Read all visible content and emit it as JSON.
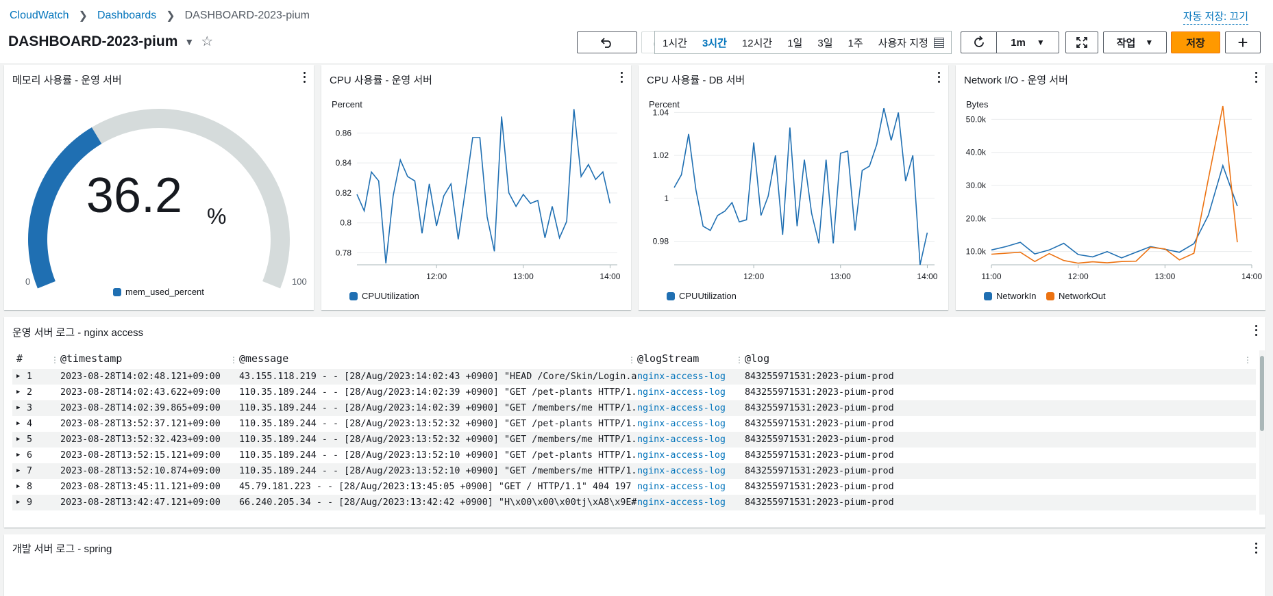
{
  "breadcrumb": {
    "root": "CloudWatch",
    "dashboards": "Dashboards",
    "current": "DASHBOARD-2023-pium"
  },
  "autosave": "자동 저장: 끄기",
  "dashboard_title": "DASHBOARD-2023-pium",
  "time_ranges": [
    "1시간",
    "3시간",
    "12시간",
    "1일",
    "3일",
    "1주",
    "사용자 지정"
  ],
  "active_time_range": "3시간",
  "refresh_interval": "1m",
  "actions_label": "작업",
  "save_label": "저장",
  "widgets": {
    "memory": {
      "title": "메모리 사용률 - 운영 서버",
      "value": "36.2",
      "unit": "%",
      "min": "0",
      "max": "100",
      "percent": 36.2,
      "legend": "mem_used_percent",
      "fill_color": "#1f6fb2",
      "track_color": "#d5dbdb"
    },
    "cpu_app": {
      "title": "CPU 사용률 - 운영 서버",
      "unit_label": "Percent",
      "legend": "CPUUtilization"
    },
    "cpu_db": {
      "title": "CPU 사용률 - DB 서버",
      "unit_label": "Percent",
      "legend": "CPUUtilization"
    },
    "network": {
      "title": "Network I/O - 운영 서버",
      "unit_label": "Bytes",
      "legend_in": "NetworkIn",
      "legend_out": "NetworkOut"
    }
  },
  "chart_data": [
    {
      "type": "line",
      "title": "CPU 사용률 - 운영 서버",
      "ylabel": "Percent",
      "x_ticks": [
        "12:00",
        "13:00",
        "14:00"
      ],
      "y_ticks": [
        "0.78",
        "0.8",
        "0.82",
        "0.84",
        "0.86"
      ],
      "xlim": [
        "11:05",
        "14:05"
      ],
      "ylim": [
        0.772,
        0.878
      ],
      "series": [
        {
          "name": "CPUUtilization",
          "color": "#1f6fb2",
          "x": [
            "11:05",
            "11:10",
            "11:15",
            "11:20",
            "11:25",
            "11:30",
            "11:35",
            "11:40",
            "11:45",
            "11:50",
            "11:55",
            "12:00",
            "12:05",
            "12:10",
            "12:15",
            "12:20",
            "12:25",
            "12:30",
            "12:35",
            "12:40",
            "12:45",
            "12:50",
            "12:55",
            "13:00",
            "13:05",
            "13:10",
            "13:15",
            "13:20",
            "13:25",
            "13:30",
            "13:35",
            "13:40",
            "13:45",
            "13:50",
            "13:55",
            "14:00"
          ],
          "values": [
            0.819,
            0.808,
            0.834,
            0.828,
            0.773,
            0.818,
            0.842,
            0.831,
            0.828,
            0.793,
            0.826,
            0.798,
            0.818,
            0.826,
            0.789,
            0.822,
            0.857,
            0.857,
            0.804,
            0.781,
            0.871,
            0.82,
            0.811,
            0.819,
            0.813,
            0.815,
            0.79,
            0.811,
            0.79,
            0.801,
            0.876,
            0.831,
            0.839,
            0.829,
            0.834,
            0.813
          ]
        }
      ]
    },
    {
      "type": "line",
      "title": "CPU 사용률 - DB 서버",
      "ylabel": "Percent",
      "x_ticks": [
        "12:00",
        "13:00",
        "14:00"
      ],
      "y_ticks": [
        "0.98",
        "1",
        "1.02",
        "1.04"
      ],
      "xlim": [
        "11:05",
        "14:05"
      ],
      "ylim": [
        0.969,
        1.043
      ],
      "series": [
        {
          "name": "CPUUtilization",
          "color": "#1f6fb2",
          "x": [
            "11:05",
            "11:10",
            "11:15",
            "11:20",
            "11:25",
            "11:30",
            "11:35",
            "11:40",
            "11:45",
            "11:50",
            "11:55",
            "12:00",
            "12:05",
            "12:10",
            "12:15",
            "12:20",
            "12:25",
            "12:30",
            "12:35",
            "12:40",
            "12:45",
            "12:50",
            "12:55",
            "13:00",
            "13:05",
            "13:10",
            "13:15",
            "13:20",
            "13:25",
            "13:30",
            "13:35",
            "13:40",
            "13:45",
            "13:50",
            "13:55",
            "14:00"
          ],
          "values": [
            1.005,
            1.011,
            1.03,
            1.004,
            0.987,
            0.985,
            0.992,
            0.994,
            0.998,
            0.989,
            0.99,
            1.026,
            0.992,
            1.001,
            1.02,
            0.983,
            1.033,
            0.987,
            1.018,
            0.993,
            0.979,
            1.018,
            0.979,
            1.021,
            1.022,
            0.985,
            1.013,
            1.015,
            1.025,
            1.042,
            1.027,
            1.04,
            1.008,
            1.02,
            0.969,
            0.984
          ]
        }
      ]
    },
    {
      "type": "line",
      "title": "Network I/O - 운영 서버",
      "ylabel": "Bytes",
      "x_ticks": [
        "11:00",
        "12:00",
        "13:00",
        "14:00"
      ],
      "y_ticks": [
        "10.0k",
        "20.0k",
        "30.0k",
        "40.0k",
        "50.0k"
      ],
      "xlim": [
        "11:00",
        "14:00"
      ],
      "ylim": [
        6000,
        54000
      ],
      "series": [
        {
          "name": "NetworkIn",
          "color": "#1f6fb2",
          "x": [
            "11:00",
            "11:10",
            "11:20",
            "11:30",
            "11:40",
            "11:50",
            "12:00",
            "12:10",
            "12:20",
            "12:30",
            "12:40",
            "12:50",
            "13:00",
            "13:10",
            "13:20",
            "13:30",
            "13:40",
            "13:50"
          ],
          "values": [
            10500,
            11500,
            12800,
            9300,
            10500,
            12500,
            9100,
            8400,
            10000,
            8100,
            9800,
            11500,
            10700,
            9800,
            12400,
            21000,
            36000,
            23800
          ]
        },
        {
          "name": "NetworkOut",
          "color": "#ec7211",
          "x": [
            "11:00",
            "11:10",
            "11:20",
            "11:30",
            "11:40",
            "11:50",
            "12:00",
            "12:10",
            "12:20",
            "12:30",
            "12:40",
            "12:50",
            "13:00",
            "13:10",
            "13:20",
            "13:30",
            "13:40",
            "13:50"
          ],
          "values": [
            9200,
            9500,
            9800,
            7000,
            9400,
            7300,
            6500,
            6900,
            6600,
            7000,
            7100,
            11300,
            10800,
            7500,
            9500,
            32000,
            54000,
            12800
          ]
        }
      ]
    }
  ],
  "nginx_log": {
    "title": "운영 서버 로그 - nginx access",
    "headers": [
      "#",
      "@timestamp",
      "@message",
      "@logStream",
      "@log"
    ],
    "rows": [
      {
        "n": "1",
        "timestamp": "2023-08-28T14:02:48.121+09:00",
        "message": "43.155.118.219 - - [28/Aug/2023:14:02:43 +0900] \"HEAD /Core/Skin/Login.a…",
        "stream": "nginx-access-log",
        "log": "843255971531:2023-pium-prod"
      },
      {
        "n": "2",
        "timestamp": "2023-08-28T14:02:43.622+09:00",
        "message": "110.35.189.244 - - [28/Aug/2023:14:02:39 +0900] \"GET /pet-plants HTTP/1.…",
        "stream": "nginx-access-log",
        "log": "843255971531:2023-pium-prod"
      },
      {
        "n": "3",
        "timestamp": "2023-08-28T14:02:39.865+09:00",
        "message": "110.35.189.244 - - [28/Aug/2023:14:02:39 +0900] \"GET /members/me HTTP/1.…",
        "stream": "nginx-access-log",
        "log": "843255971531:2023-pium-prod"
      },
      {
        "n": "4",
        "timestamp": "2023-08-28T13:52:37.121+09:00",
        "message": "110.35.189.244 - - [28/Aug/2023:13:52:32 +0900] \"GET /pet-plants HTTP/1.…",
        "stream": "nginx-access-log",
        "log": "843255971531:2023-pium-prod"
      },
      {
        "n": "5",
        "timestamp": "2023-08-28T13:52:32.423+09:00",
        "message": "110.35.189.244 - - [28/Aug/2023:13:52:32 +0900] \"GET /members/me HTTP/1.…",
        "stream": "nginx-access-log",
        "log": "843255971531:2023-pium-prod"
      },
      {
        "n": "6",
        "timestamp": "2023-08-28T13:52:15.121+09:00",
        "message": "110.35.189.244 - - [28/Aug/2023:13:52:10 +0900] \"GET /pet-plants HTTP/1.…",
        "stream": "nginx-access-log",
        "log": "843255971531:2023-pium-prod"
      },
      {
        "n": "7",
        "timestamp": "2023-08-28T13:52:10.874+09:00",
        "message": "110.35.189.244 - - [28/Aug/2023:13:52:10 +0900] \"GET /members/me HTTP/1.…",
        "stream": "nginx-access-log",
        "log": "843255971531:2023-pium-prod"
      },
      {
        "n": "8",
        "timestamp": "2023-08-28T13:45:11.121+09:00",
        "message": "45.79.181.223 - - [28/Aug/2023:13:45:05 +0900] \"GET / HTTP/1.1\" 404 197 …",
        "stream": "nginx-access-log",
        "log": "843255971531:2023-pium-prod"
      },
      {
        "n": "9",
        "timestamp": "2023-08-28T13:42:47.121+09:00",
        "message": "66.240.205.34 - - [28/Aug/2023:13:42:42 +0900] \"H\\x00\\x00\\x00tj\\xA8\\x9E#…",
        "stream": "nginx-access-log",
        "log": "843255971531:2023-pium-prod"
      }
    ]
  },
  "spring_log": {
    "title": "개발 서버 로그 - spring"
  }
}
